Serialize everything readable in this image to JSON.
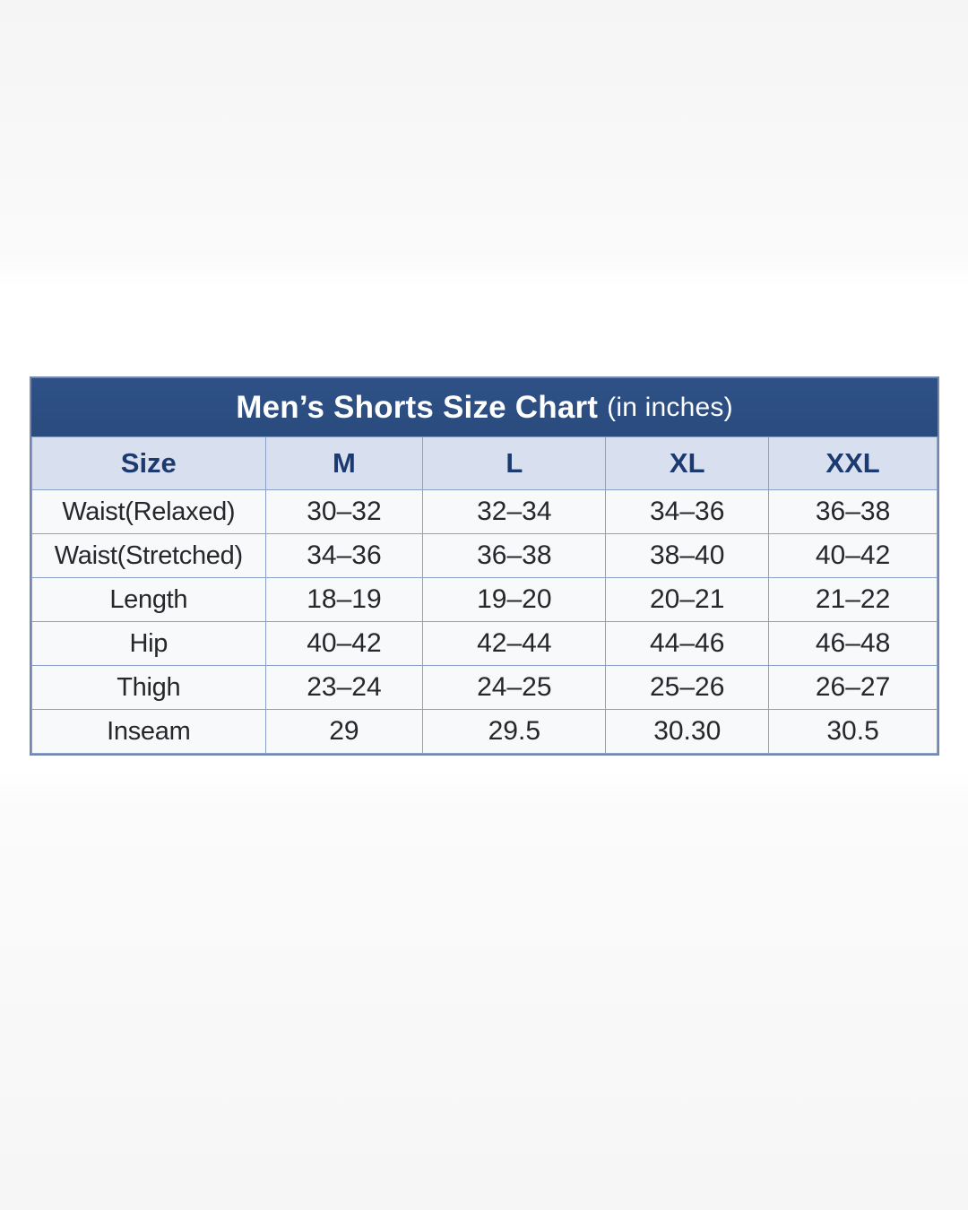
{
  "table": {
    "title_main": "Men’s Shorts Size Chart",
    "title_suffix": "(in inches)",
    "units": "inches",
    "colors": {
      "title_bar_bg": "#2b4d80",
      "title_text": "#ffffff",
      "header_bg": "#d8dfef",
      "header_text": "#1c3a70",
      "body_bg": "#f8f9fb",
      "body_text": "#25272b",
      "grid_border": "#8ba0c6",
      "outer_border": "#7288b2"
    }
  },
  "chart_data": {
    "type": "table",
    "title": "Men’s Shorts Size Chart (in inches)",
    "columns": [
      "Size",
      "M",
      "L",
      "XL",
      "XXL"
    ],
    "rows": [
      {
        "label": "Waist(Relaxed)",
        "values": [
          "30–32",
          "32–34",
          "34–36",
          "36–38"
        ]
      },
      {
        "label": "Waist(Stretched)",
        "values": [
          "34–36",
          "36–38",
          "38–40",
          "40–42"
        ]
      },
      {
        "label": "Length",
        "values": [
          "18–19",
          "19–20",
          "20–21",
          "21–22"
        ]
      },
      {
        "label": "Hip",
        "values": [
          "40–42",
          "42–44",
          "44–46",
          "46–48"
        ]
      },
      {
        "label": "Thigh",
        "values": [
          "23–24",
          "24–25",
          "25–26",
          "26–27"
        ]
      },
      {
        "label": "Inseam",
        "values": [
          "29",
          "29.5",
          "30.30",
          "30.5"
        ]
      }
    ]
  }
}
